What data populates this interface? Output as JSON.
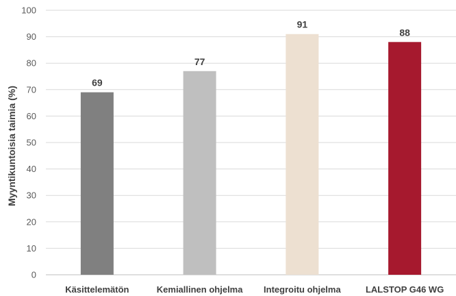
{
  "chart_data": {
    "type": "bar",
    "categories": [
      "Käsittelemätön",
      "Kemiallinen ohjelma",
      "Integroitu ohjelma",
      "LALSTOP G46 WG"
    ],
    "values": [
      69,
      77,
      91,
      88
    ],
    "colors": [
      "#808080",
      "#bfbfbf",
      "#ede0d1",
      "#a6192e"
    ],
    "title": "",
    "xlabel": "",
    "ylabel": "Myyntikuntoisia taimia (%)",
    "ylim": [
      0,
      100
    ],
    "ytick_step": 10,
    "yticks": [
      "0",
      "10",
      "20",
      "30",
      "40",
      "50",
      "60",
      "70",
      "80",
      "90",
      "100"
    ],
    "grid": true,
    "legend": "none",
    "data_labels": true
  }
}
